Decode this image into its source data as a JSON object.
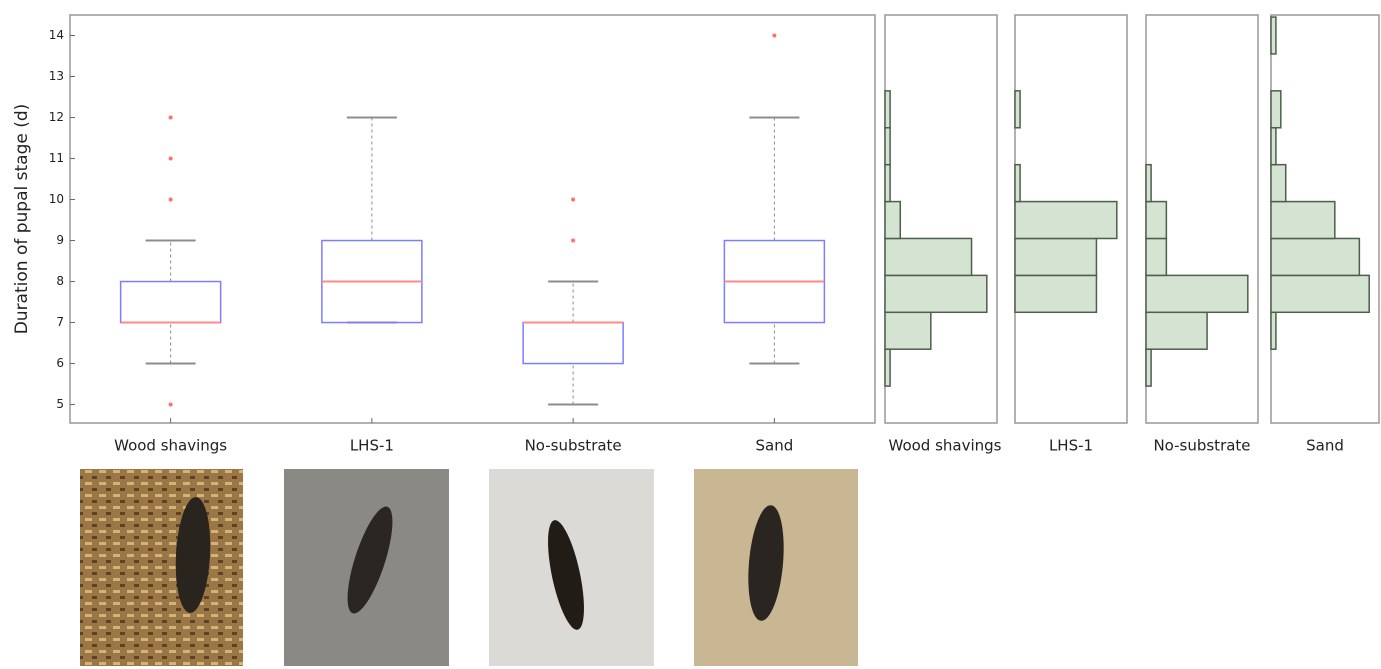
{
  "chart_data": [
    {
      "type": "box",
      "ylabel": "Duration of pupal stage (d)",
      "categories": [
        "Wood shavings",
        "LHS-1",
        "No-substrate",
        "Sand"
      ],
      "whisker_low": [
        6,
        7,
        5,
        6
      ],
      "q1": [
        7,
        7,
        6,
        7
      ],
      "median": [
        7,
        8,
        7,
        8
      ],
      "q3": [
        8,
        9,
        7,
        9
      ],
      "whisker_high": [
        9,
        12,
        8,
        12
      ],
      "outliers": [
        [
          12,
          11,
          10,
          5
        ],
        [],
        [
          10,
          9
        ],
        [
          14
        ]
      ],
      "box_color": "#7d7dff",
      "median_color": "#ff8a8a",
      "whisker_color": "#8c8c8c",
      "outlier_color": "#ff6f6f",
      "ylim": [
        4.55,
        14.5
      ],
      "yticks": [
        5,
        6,
        7,
        8,
        9,
        10,
        11,
        12,
        13,
        14
      ]
    },
    {
      "type": "histogram",
      "orientation": "horizontal",
      "xlabel": "Wood shavings",
      "color": "#d5e3d3",
      "bins": [
        5.45,
        6.35,
        7.25,
        8.15,
        9.05,
        9.95,
        10.85,
        11.75,
        12.65,
        13.55,
        14.45
      ],
      "values": [
        1,
        9,
        20,
        17,
        3,
        1,
        1,
        1,
        0,
        0
      ],
      "xlim": [
        0,
        22
      ],
      "ylim": [
        4.55,
        14.5
      ]
    },
    {
      "type": "histogram",
      "orientation": "horizontal",
      "xlabel": "LHS-1",
      "color": "#d5e3d3",
      "bins": [
        5.45,
        6.35,
        7.25,
        8.15,
        9.05,
        9.95,
        10.85,
        11.75,
        12.65,
        13.55,
        14.45
      ],
      "values": [
        0,
        0,
        16,
        16,
        20,
        1,
        0,
        1,
        0,
        0
      ],
      "xlim": [
        0,
        22
      ],
      "ylim": [
        4.55,
        14.5
      ]
    },
    {
      "type": "histogram",
      "orientation": "horizontal",
      "xlabel": "No-substrate",
      "color": "#d5e3d3",
      "bins": [
        5.45,
        6.35,
        7.25,
        8.15,
        9.05,
        9.95,
        10.85,
        11.75,
        12.65,
        13.55,
        14.45
      ],
      "values": [
        1,
        12,
        20,
        4,
        4,
        1,
        0,
        0,
        0,
        0
      ],
      "xlim": [
        0,
        22
      ],
      "ylim": [
        4.55,
        14.5
      ]
    },
    {
      "type": "histogram",
      "orientation": "horizontal",
      "xlabel": "Sand",
      "color": "#d5e3d3",
      "bins": [
        5.45,
        6.35,
        7.25,
        8.15,
        9.05,
        9.95,
        10.85,
        11.75,
        12.65,
        13.55,
        14.45
      ],
      "values": [
        0,
        1,
        20,
        18,
        13,
        3,
        1,
        2,
        0,
        1
      ],
      "xlim": [
        0,
        22
      ],
      "ylim": [
        4.55,
        14.5
      ]
    }
  ]
}
